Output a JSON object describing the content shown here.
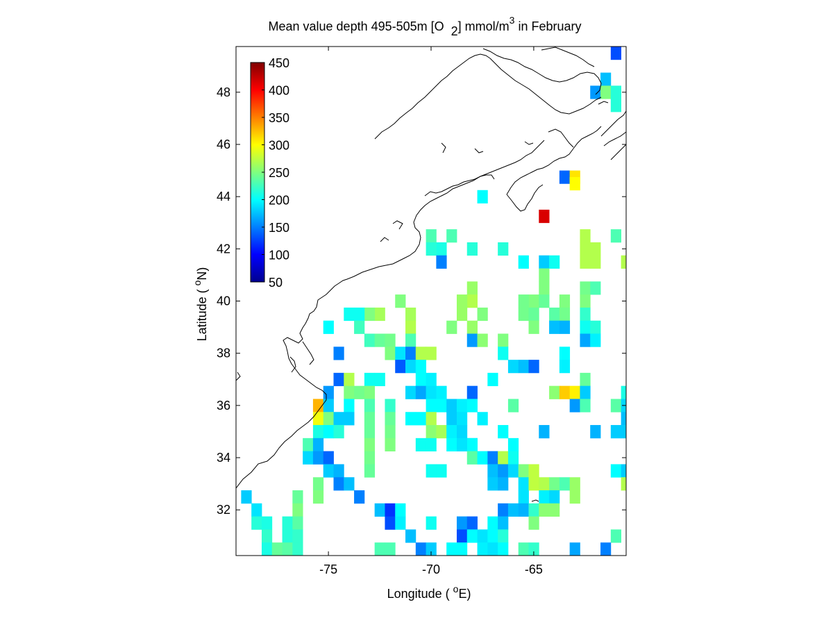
{
  "chart_data": {
    "type": "heatmap",
    "title": {
      "prefix": "Mean value depth 495-505m [O",
      "sub": "2",
      "mid": "] mmol/m",
      "sup": "3",
      "suffix": " in February"
    },
    "xlabel": {
      "prefix": "Longitude ( ",
      "sup": "o",
      "suffix": "E)"
    },
    "ylabel": {
      "prefix": "Latitude ( ",
      "sup": "o",
      "suffix": "N)"
    },
    "xlim": [
      -79.5,
      -60.5
    ],
    "ylim": [
      30.25,
      49.75
    ],
    "xticks": [
      -75,
      -70,
      -65
    ],
    "xtick_labels": [
      "-75",
      "-70",
      "-65"
    ],
    "yticks": [
      32,
      34,
      36,
      38,
      40,
      42,
      44,
      46,
      48
    ],
    "ytick_labels": [
      "32",
      "34",
      "36",
      "38",
      "40",
      "42",
      "44",
      "46",
      "48"
    ],
    "colorbar": {
      "min": 50,
      "max": 450,
      "colormap": "jet",
      "ticks": [
        50,
        100,
        150,
        200,
        250,
        300,
        350,
        400,
        450
      ],
      "tick_labels": [
        "50",
        "100",
        "150",
        "200",
        "250",
        "300",
        "350",
        "400",
        "450"
      ]
    },
    "grid": false,
    "cell_size_deg": 0.5,
    "cells": [
      [
        -61,
        49.5,
        130
      ],
      [
        -61.5,
        48.5,
        175
      ],
      [
        -62,
        48,
        160
      ],
      [
        -61.5,
        48,
        250
      ],
      [
        -61,
        48,
        215
      ],
      [
        -61,
        47.5,
        215
      ],
      [
        -63.5,
        44.75,
        140
      ],
      [
        -63,
        44.75,
        310
      ],
      [
        -63,
        44.5,
        300
      ],
      [
        -64.5,
        43.25,
        415
      ],
      [
        -67.5,
        44,
        200
      ],
      [
        -69,
        42.5,
        230
      ],
      [
        -70,
        42.5,
        230
      ],
      [
        -69.5,
        42,
        210
      ],
      [
        -70,
        42,
        215
      ],
      [
        -69.5,
        41.5,
        150
      ],
      [
        -68,
        42,
        215
      ],
      [
        -66.5,
        42,
        215
      ],
      [
        -62.5,
        42.5,
        270
      ],
      [
        -62.5,
        42,
        270
      ],
      [
        -62,
        42,
        270
      ],
      [
        -62.5,
        41.5,
        270
      ],
      [
        -62,
        41.5,
        270
      ],
      [
        -61,
        42.5,
        230
      ],
      [
        -60.5,
        41.5,
        270
      ],
      [
        -65.5,
        41.5,
        200
      ],
      [
        -64.5,
        41.5,
        180
      ],
      [
        -64,
        41.5,
        205
      ],
      [
        -64.5,
        41,
        250
      ],
      [
        -64.5,
        40.5,
        250
      ],
      [
        -62.5,
        40.5,
        245
      ],
      [
        -62,
        40.5,
        230
      ],
      [
        -68,
        40.5,
        260
      ],
      [
        -68,
        40,
        270
      ],
      [
        -68.5,
        40,
        260
      ],
      [
        -65,
        40,
        250
      ],
      [
        -64.5,
        40,
        240
      ],
      [
        -65.5,
        40,
        245
      ],
      [
        -63.5,
        40,
        250
      ],
      [
        -62.5,
        40,
        250
      ],
      [
        -71.5,
        40,
        250
      ],
      [
        -71,
        39.5,
        265
      ],
      [
        -72.5,
        39.5,
        265
      ],
      [
        -73,
        39.5,
        250
      ],
      [
        -73.5,
        39.5,
        205
      ],
      [
        -74,
        39.5,
        205
      ],
      [
        -68.5,
        39.5,
        260
      ],
      [
        -67.5,
        39.5,
        250
      ],
      [
        -65.5,
        39.5,
        245
      ],
      [
        -65,
        39.5,
        240
      ],
      [
        -64,
        39.5,
        235
      ],
      [
        -63.5,
        39.5,
        245
      ],
      [
        -62.5,
        39.5,
        220
      ],
      [
        -75,
        39,
        200
      ],
      [
        -73.5,
        39,
        225
      ],
      [
        -71,
        39,
        270
      ],
      [
        -69,
        39,
        250
      ],
      [
        -68,
        39,
        260
      ],
      [
        -65,
        39,
        250
      ],
      [
        -64,
        39,
        175
      ],
      [
        -63.5,
        39,
        170
      ],
      [
        -62.5,
        39,
        205
      ],
      [
        -62,
        39,
        215
      ],
      [
        -73,
        38.5,
        225
      ],
      [
        -72.5,
        38.5,
        240
      ],
      [
        -72,
        38.5,
        245
      ],
      [
        -71,
        38.5,
        230
      ],
      [
        -68,
        38.5,
        160
      ],
      [
        -67.5,
        38.5,
        255
      ],
      [
        -66.5,
        38.5,
        250
      ],
      [
        -62.5,
        38.5,
        165
      ],
      [
        -62,
        38.5,
        195
      ],
      [
        -74.5,
        38,
        150
      ],
      [
        -72,
        38,
        250
      ],
      [
        -71.5,
        38,
        190
      ],
      [
        -71,
        38,
        150
      ],
      [
        -70.5,
        38,
        270
      ],
      [
        -70,
        38,
        270
      ],
      [
        -66.5,
        38,
        205
      ],
      [
        -63.5,
        38,
        200
      ],
      [
        -71.5,
        37.5,
        135
      ],
      [
        -71,
        37.5,
        185
      ],
      [
        -70.5,
        37.5,
        200
      ],
      [
        -66,
        37.5,
        185
      ],
      [
        -65.5,
        37.5,
        175
      ],
      [
        -65,
        37.5,
        140
      ],
      [
        -63.5,
        37.5,
        195
      ],
      [
        -74.5,
        37,
        140
      ],
      [
        -74,
        37,
        270
      ],
      [
        -73,
        37,
        205
      ],
      [
        -72.5,
        37,
        205
      ],
      [
        -70.5,
        37,
        200
      ],
      [
        -70,
        37,
        195
      ],
      [
        -67,
        37,
        200
      ],
      [
        -62.5,
        37,
        240
      ],
      [
        -75,
        36.5,
        160
      ],
      [
        -74,
        36.5,
        250
      ],
      [
        -73.5,
        36.5,
        245
      ],
      [
        -73,
        36.5,
        250
      ],
      [
        -71,
        36.5,
        185
      ],
      [
        -70.5,
        36.5,
        165
      ],
      [
        -70,
        36.5,
        190
      ],
      [
        -69.5,
        36.5,
        195
      ],
      [
        -68,
        36.5,
        140
      ],
      [
        -64,
        36.5,
        255
      ],
      [
        -63.5,
        36.5,
        320
      ],
      [
        -63,
        36.5,
        305
      ],
      [
        -62.5,
        36.5,
        180
      ],
      [
        -60.5,
        36.5,
        210
      ],
      [
        -75.5,
        36,
        330
      ],
      [
        -75,
        36,
        180
      ],
      [
        -74,
        36,
        200
      ],
      [
        -73,
        36,
        230
      ],
      [
        -72,
        36,
        220
      ],
      [
        -70,
        36,
        200
      ],
      [
        -69.5,
        36,
        200
      ],
      [
        -69,
        36,
        180
      ],
      [
        -68.5,
        36,
        195
      ],
      [
        -68,
        36,
        200
      ],
      [
        -66,
        36,
        235
      ],
      [
        -63,
        36,
        160
      ],
      [
        -62.5,
        36,
        230
      ],
      [
        -61,
        36,
        235
      ],
      [
        -60.5,
        36,
        185
      ],
      [
        -75.5,
        35.5,
        295
      ],
      [
        -75,
        35.5,
        250
      ],
      [
        -74.5,
        35.5,
        180
      ],
      [
        -74,
        35.5,
        180
      ],
      [
        -73,
        35.5,
        240
      ],
      [
        -72,
        35.5,
        240
      ],
      [
        -71,
        35.5,
        200
      ],
      [
        -70.5,
        35.5,
        200
      ],
      [
        -70,
        35.5,
        270
      ],
      [
        -69,
        35.5,
        180
      ],
      [
        -68.5,
        35.5,
        190
      ],
      [
        -67.5,
        35.5,
        195
      ],
      [
        -60.5,
        35.5,
        175
      ],
      [
        -75.5,
        35,
        210
      ],
      [
        -75,
        35,
        200
      ],
      [
        -74.5,
        35,
        215
      ],
      [
        -73,
        35,
        240
      ],
      [
        -72,
        35,
        245
      ],
      [
        -70,
        35,
        255
      ],
      [
        -69.5,
        35,
        265
      ],
      [
        -69,
        35,
        195
      ],
      [
        -68.5,
        35,
        185
      ],
      [
        -66.5,
        35,
        200
      ],
      [
        -64.5,
        35,
        170
      ],
      [
        -62,
        35,
        170
      ],
      [
        -61,
        35,
        180
      ],
      [
        -60.5,
        35,
        180
      ],
      [
        -76,
        34.5,
        230
      ],
      [
        -75.5,
        34.5,
        170
      ],
      [
        -73,
        34.5,
        250
      ],
      [
        -72,
        34.5,
        250
      ],
      [
        -70.5,
        34.5,
        205
      ],
      [
        -70,
        34.5,
        205
      ],
      [
        -69,
        34.5,
        200
      ],
      [
        -68.5,
        34.5,
        190
      ],
      [
        -68,
        34.5,
        175
      ],
      [
        -68,
        34.5,
        200
      ],
      [
        -66,
        34.5,
        200
      ],
      [
        -76,
        34,
        185
      ],
      [
        -75.5,
        34,
        160
      ],
      [
        -75,
        34,
        140
      ],
      [
        -73,
        34,
        245
      ],
      [
        -68,
        34,
        235
      ],
      [
        -67.5,
        34,
        200
      ],
      [
        -67,
        34,
        150
      ],
      [
        -66.5,
        34,
        270
      ],
      [
        -66,
        34,
        205
      ],
      [
        -75,
        33.5,
        180
      ],
      [
        -74.5,
        33.5,
        170
      ],
      [
        -73,
        33.5,
        240
      ],
      [
        -70,
        33.5,
        205
      ],
      [
        -69.5,
        33.5,
        205
      ],
      [
        -67,
        33.5,
        175
      ],
      [
        -66.5,
        33.5,
        160
      ],
      [
        -66,
        33.5,
        185
      ],
      [
        -65.5,
        33.5,
        250
      ],
      [
        -65,
        33.5,
        275
      ],
      [
        -61,
        33.5,
        200
      ],
      [
        -60.5,
        33.5,
        180
      ],
      [
        -75.5,
        33,
        245
      ],
      [
        -74.5,
        33,
        150
      ],
      [
        -74,
        33,
        175
      ],
      [
        -67,
        33,
        180
      ],
      [
        -66.5,
        33,
        170
      ],
      [
        -65.5,
        33,
        190
      ],
      [
        -65,
        33,
        275
      ],
      [
        -64.5,
        33,
        270
      ],
      [
        -64,
        33,
        245
      ],
      [
        -63.5,
        33,
        230
      ],
      [
        -63,
        33,
        260
      ],
      [
        -60.5,
        33,
        270
      ],
      [
        -79,
        32.5,
        180
      ],
      [
        -76.5,
        32.5,
        240
      ],
      [
        -75.5,
        32.5,
        250
      ],
      [
        -73.5,
        32.5,
        150
      ],
      [
        -65.5,
        32.5,
        190
      ],
      [
        -64.5,
        32.5,
        195
      ],
      [
        -64,
        32.5,
        185
      ],
      [
        -63,
        32.5,
        260
      ],
      [
        -78.5,
        32,
        190
      ],
      [
        -76.5,
        32,
        250
      ],
      [
        -72.5,
        32,
        175
      ],
      [
        -72,
        32,
        120
      ],
      [
        -71.5,
        32,
        200
      ],
      [
        -66.5,
        32,
        150
      ],
      [
        -66,
        32,
        175
      ],
      [
        -65.5,
        32,
        170
      ],
      [
        -65,
        32,
        220
      ],
      [
        -64.5,
        32,
        255
      ],
      [
        -64,
        32,
        255
      ],
      [
        -78.5,
        31.5,
        215
      ],
      [
        -78,
        31.5,
        210
      ],
      [
        -77,
        31.5,
        215
      ],
      [
        -76.5,
        31.5,
        235
      ],
      [
        -72,
        31.5,
        130
      ],
      [
        -71.5,
        31.5,
        195
      ],
      [
        -70,
        31.5,
        205
      ],
      [
        -68.5,
        31.5,
        160
      ],
      [
        -68,
        31.5,
        140
      ],
      [
        -67,
        31.5,
        200
      ],
      [
        -66.5,
        31.5,
        175
      ],
      [
        -65,
        31.5,
        250
      ],
      [
        -78,
        31,
        220
      ],
      [
        -77,
        31,
        215
      ],
      [
        -76.5,
        31,
        220
      ],
      [
        -71,
        31,
        175
      ],
      [
        -68.5,
        31,
        130
      ],
      [
        -68,
        31,
        200
      ],
      [
        -67.5,
        31,
        190
      ],
      [
        -67,
        31,
        200
      ],
      [
        -66.5,
        31,
        215
      ],
      [
        -61,
        31,
        230
      ],
      [
        -78,
        30.5,
        210
      ],
      [
        -77.5,
        30.5,
        240
      ],
      [
        -77,
        30.5,
        235
      ],
      [
        -76.5,
        30.5,
        220
      ],
      [
        -72.5,
        30.5,
        230
      ],
      [
        -72,
        30.5,
        230
      ],
      [
        -70.5,
        30.5,
        150
      ],
      [
        -70,
        30.5,
        180
      ],
      [
        -69,
        30.5,
        200
      ],
      [
        -68.5,
        30.5,
        200
      ],
      [
        -67.5,
        30.5,
        195
      ],
      [
        -67,
        30.5,
        190
      ],
      [
        -66.5,
        30.5,
        200
      ],
      [
        -65.5,
        30.5,
        230
      ],
      [
        -65,
        30.5,
        220
      ],
      [
        -63,
        30.5,
        165
      ],
      [
        -61.5,
        30.5,
        150
      ]
    ]
  }
}
